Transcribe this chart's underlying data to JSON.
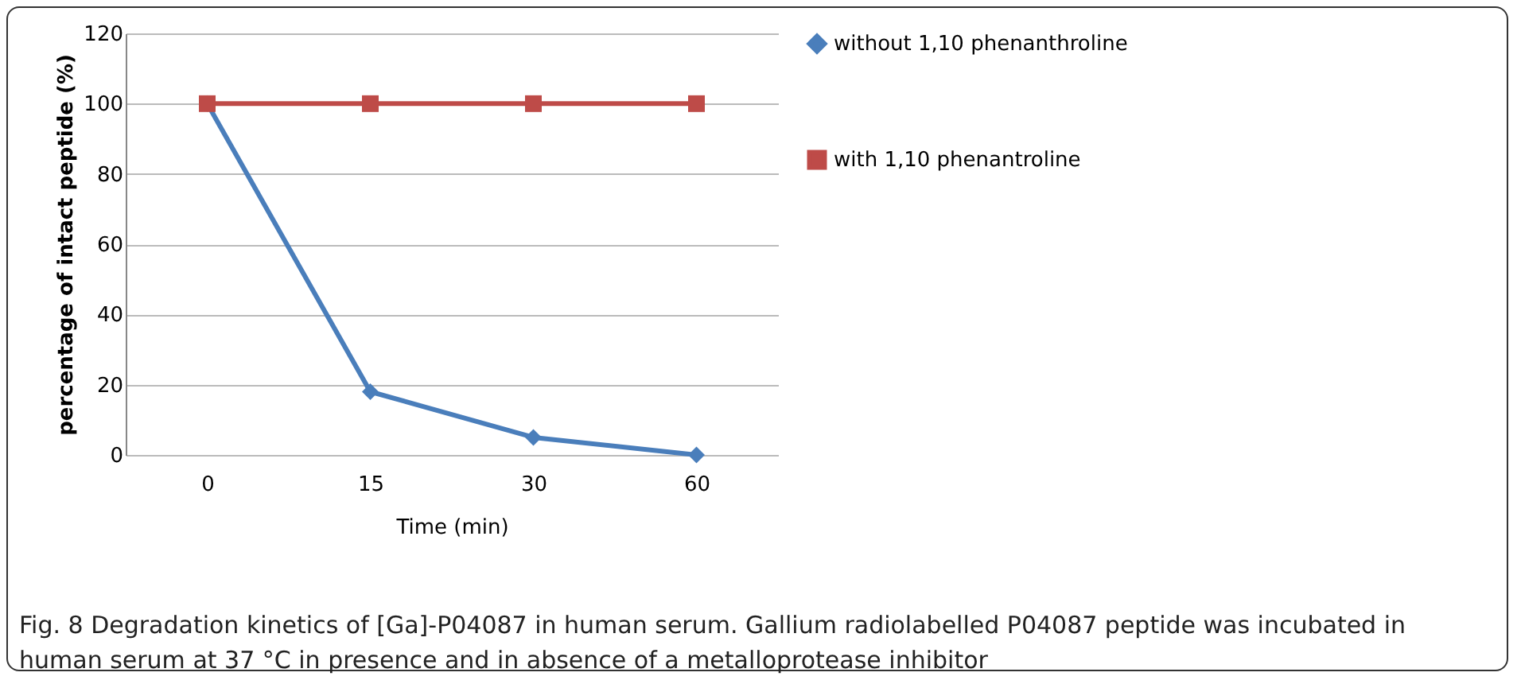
{
  "chart_data": {
    "type": "line",
    "xlabel": "Time (min)",
    "ylabel": "percentage of intact peptide (%)",
    "categories": [
      "0",
      "15",
      "30",
      "60"
    ],
    "series": [
      {
        "name": "without 1,10 phenanthroline",
        "color": "#4a7ebb",
        "marker": "diamond",
        "values": [
          100,
          18,
          5,
          0
        ]
      },
      {
        "name": "with 1,10 phenantroline",
        "color": "#be4b48",
        "marker": "square",
        "values": [
          100,
          100,
          100,
          100
        ]
      }
    ],
    "ylim": [
      0,
      120
    ],
    "yticks": [
      0,
      20,
      40,
      60,
      80,
      100,
      120
    ],
    "grid": "y",
    "legend": "right",
    "annotations": [
      "Fig. 8 Degradation kinetics of [Ga]-P04087 in human serum. Gallium radiolabelled P04087 peptide was incubated in human serum at 37 °C in presence and in absence of a metalloprotease inhibitor"
    ]
  }
}
